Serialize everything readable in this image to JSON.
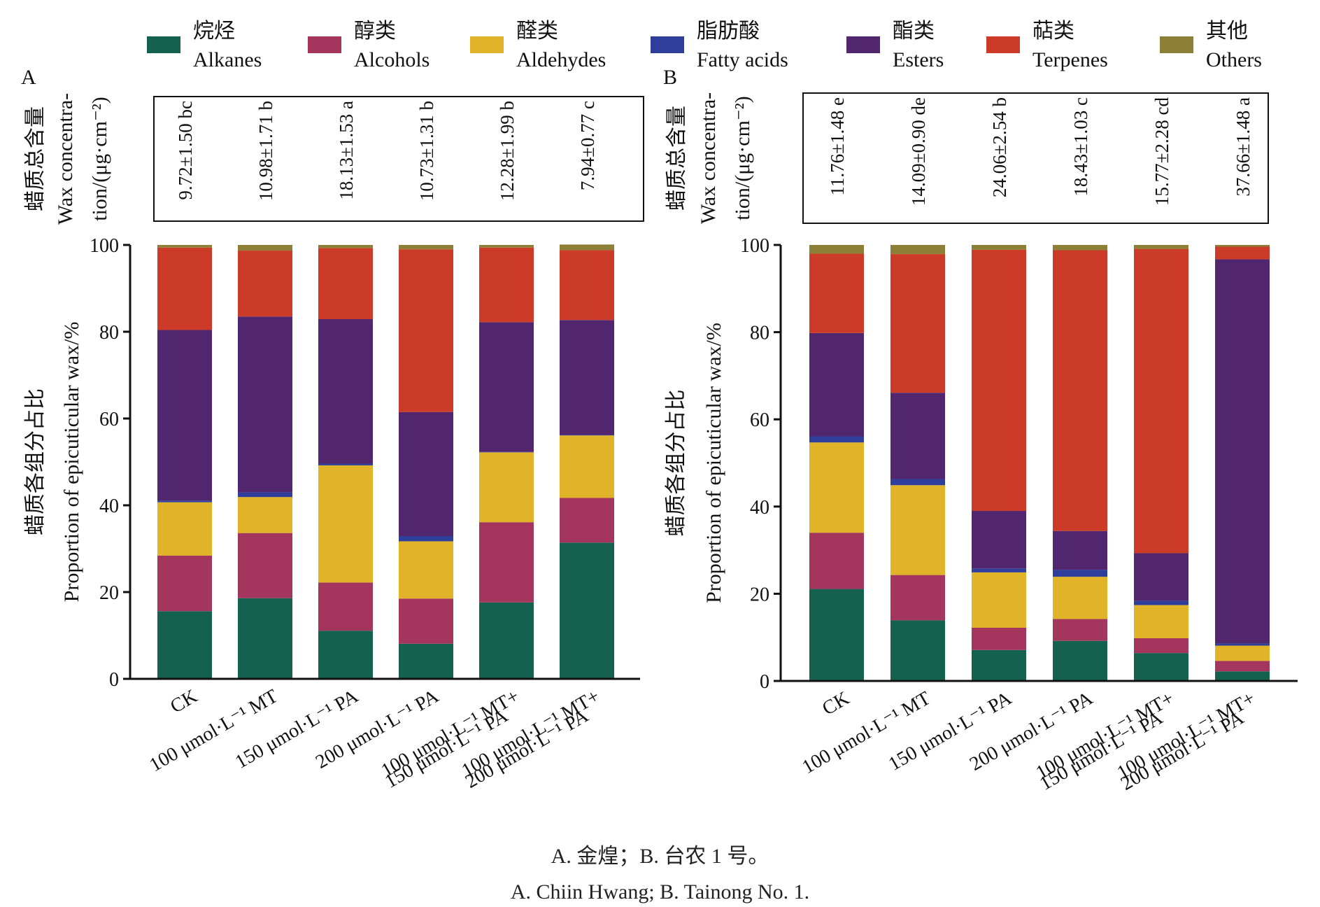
{
  "legend": [
    {
      "zh": "烷烃",
      "en": "Alkanes",
      "color": "#156150"
    },
    {
      "zh": "醇类",
      "en": "Alcohols",
      "color": "#A4365E"
    },
    {
      "zh": "醛类",
      "en": "Aldehydes",
      "color": "#E1B328"
    },
    {
      "zh": "脂肪酸",
      "en": "Fatty acids",
      "color": "#2E3E9A"
    },
    {
      "zh": "酯类",
      "en": "Esters",
      "color": "#51266E"
    },
    {
      "zh": "萜类",
      "en": "Terpenes",
      "color": "#CC3B28"
    },
    {
      "zh": "其他",
      "en": "Others",
      "color": "#8E7F36"
    }
  ],
  "caption": {
    "zh": "A. 金煌；B. 台农 1 号。",
    "en": "A. Chiin Hwang; B. Tainong No. 1."
  },
  "chart_data": [
    {
      "panel": "A",
      "type": "bar",
      "stacked": true,
      "ylabel_zh": "蜡质各组分占比",
      "ylabel_en": "Proportion of epicuticular wax/%",
      "conc_label_zh": "蜡质总含量",
      "conc_label_en1": "Wax concentra-",
      "conc_label_en2": "tion/(μg·cm⁻²)",
      "ylim": [
        0,
        100
      ],
      "yticks": [
        "0",
        "20",
        "40",
        "60",
        "80",
        "100"
      ],
      "categories": [
        [
          "CK"
        ],
        [
          "100 μmol·L⁻¹ MT"
        ],
        [
          "150 μmol·L⁻¹ PA"
        ],
        [
          "200 μmol·L⁻¹ PA"
        ],
        [
          "100 μmol·L⁻¹ MT+",
          "150 μmol·L⁻¹ PA"
        ],
        [
          "100 μmol·L⁻¹ MT+",
          "200 μmol·L⁻¹ PA"
        ]
      ],
      "wax_concentration": [
        "9.72±1.50 bc",
        "10.98±1.71 b",
        "18.13±1.53 a",
        "10.73±1.31 b",
        "12.28±1.99 b",
        "7.94±0.77 c"
      ],
      "series": [
        {
          "name": "Alkanes",
          "values": [
            15.6,
            18.6,
            11.1,
            8.1,
            17.6,
            31.4
          ]
        },
        {
          "name": "Alcohols",
          "values": [
            12.8,
            15.0,
            11.1,
            10.4,
            18.5,
            10.3
          ]
        },
        {
          "name": "Aldehydes",
          "values": [
            12.3,
            8.3,
            27.0,
            13.2,
            16.1,
            14.4
          ]
        },
        {
          "name": "Fatty acids",
          "values": [
            0.4,
            1.1,
            0.4,
            1.2,
            0.1,
            0.1
          ]
        },
        {
          "name": "Esters",
          "values": [
            39.3,
            40.5,
            33.3,
            28.6,
            29.9,
            26.5
          ]
        },
        {
          "name": "Terpenes",
          "values": [
            19.0,
            15.2,
            16.4,
            37.5,
            17.2,
            16.1
          ]
        },
        {
          "name": "Others",
          "values": [
            0.6,
            1.3,
            0.7,
            1.0,
            0.6,
            1.3
          ]
        }
      ]
    },
    {
      "panel": "B",
      "type": "bar",
      "stacked": true,
      "ylabel_zh": "蜡质各组分占比",
      "ylabel_en": "Proportion of epicuticular wax/%",
      "conc_label_zh": "蜡质总含量",
      "conc_label_en1": "Wax concentra-",
      "conc_label_en2": "tion/(μg·cm⁻²)",
      "ylim": [
        0,
        100
      ],
      "yticks": [
        "0",
        "20",
        "40",
        "60",
        "80",
        "100"
      ],
      "categories": [
        [
          "CK"
        ],
        [
          "100 μmol·L⁻¹ MT"
        ],
        [
          "150 μmol·L⁻¹ PA"
        ],
        [
          "200 μmol·L⁻¹ PA"
        ],
        [
          "100 μmol·L⁻¹ MT+",
          "150 μmol·L⁻¹ PA"
        ],
        [
          "100 μmol·L⁻¹ MT+",
          "200 μmol·L⁻¹ PA"
        ]
      ],
      "wax_concentration": [
        "11.76±1.48 e",
        "14.09±0.90 de",
        "24.06±2.54 b",
        "18.43±1.03 c",
        "15.77±2.28 cd",
        "37.66±1.48 a"
      ],
      "series": [
        {
          "name": "Alkanes",
          "values": [
            21.1,
            13.9,
            7.1,
            9.2,
            6.4,
            2.2
          ]
        },
        {
          "name": "Alcohols",
          "values": [
            12.9,
            10.4,
            5.1,
            5.0,
            3.4,
            2.4
          ]
        },
        {
          "name": "Aldehydes",
          "values": [
            20.7,
            20.6,
            12.7,
            9.7,
            7.6,
            3.5
          ]
        },
        {
          "name": "Fatty acids",
          "values": [
            1.4,
            1.4,
            0.9,
            1.6,
            1.0,
            0.5
          ]
        },
        {
          "name": "Esters",
          "values": [
            23.7,
            19.8,
            13.2,
            8.9,
            10.9,
            88.1
          ]
        },
        {
          "name": "Terpenes",
          "values": [
            18.2,
            31.8,
            59.9,
            64.4,
            69.8,
            2.9
          ]
        },
        {
          "name": "Others",
          "values": [
            2.0,
            2.1,
            1.1,
            1.2,
            0.9,
            0.4
          ]
        }
      ]
    }
  ]
}
